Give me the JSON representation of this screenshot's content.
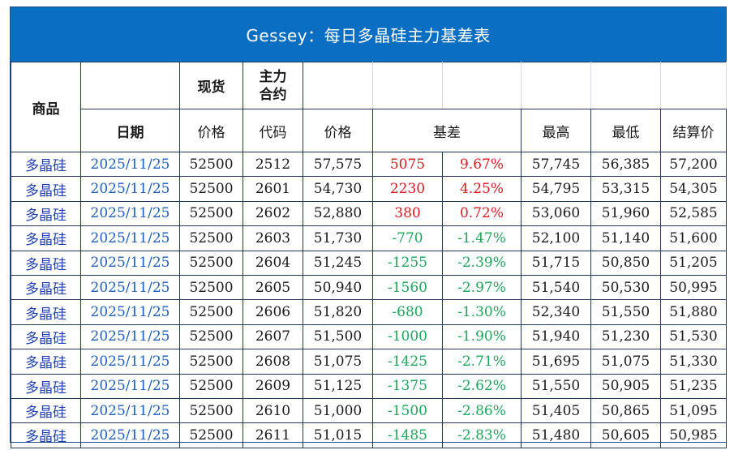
{
  "title": "Gessey：每日多晶硅主力基差表",
  "headers": {
    "product": "商品",
    "spot": "现货",
    "contract": "主力合约",
    "date": "日期",
    "spot_price": "价格",
    "code": "代码",
    "price": "价格",
    "basis": "基差",
    "high": "最高",
    "low": "最低",
    "settle": "结算价"
  },
  "rows": [
    {
      "product": "多晶硅",
      "date": "2025/11/25",
      "spot": "52500",
      "code": "2512",
      "price": "57,575",
      "basis": "5075",
      "basis_pct": "9.67%",
      "high": "57,745",
      "low": "56,385",
      "settle": "57,200",
      "dir": "up"
    },
    {
      "product": "多晶硅",
      "date": "2025/11/25",
      "spot": "52500",
      "code": "2601",
      "price": "54,730",
      "basis": "2230",
      "basis_pct": "4.25%",
      "high": "54,795",
      "low": "53,315",
      "settle": "54,305",
      "dir": "up"
    },
    {
      "product": "多晶硅",
      "date": "2025/11/25",
      "spot": "52500",
      "code": "2602",
      "price": "52,880",
      "basis": "380",
      "basis_pct": "0.72%",
      "high": "53,060",
      "low": "51,960",
      "settle": "52,585",
      "dir": "up"
    },
    {
      "product": "多晶硅",
      "date": "2025/11/25",
      "spot": "52500",
      "code": "2603",
      "price": "51,730",
      "basis": "-770",
      "basis_pct": "-1.47%",
      "high": "52,100",
      "low": "51,140",
      "settle": "51,600",
      "dir": "down"
    },
    {
      "product": "多晶硅",
      "date": "2025/11/25",
      "spot": "52500",
      "code": "2604",
      "price": "51,245",
      "basis": "-1255",
      "basis_pct": "-2.39%",
      "high": "51,715",
      "low": "50,850",
      "settle": "51,205",
      "dir": "down"
    },
    {
      "product": "多晶硅",
      "date": "2025/11/25",
      "spot": "52500",
      "code": "2605",
      "price": "50,940",
      "basis": "-1560",
      "basis_pct": "-2.97%",
      "high": "51,540",
      "low": "50,530",
      "settle": "50,995",
      "dir": "down"
    },
    {
      "product": "多晶硅",
      "date": "2025/11/25",
      "spot": "52500",
      "code": "2606",
      "price": "51,820",
      "basis": "-680",
      "basis_pct": "-1.30%",
      "high": "52,340",
      "low": "51,550",
      "settle": "51,880",
      "dir": "down"
    },
    {
      "product": "多晶硅",
      "date": "2025/11/25",
      "spot": "52500",
      "code": "2607",
      "price": "51,500",
      "basis": "-1000",
      "basis_pct": "-1.90%",
      "high": "51,940",
      "low": "51,230",
      "settle": "51,530",
      "dir": "down"
    },
    {
      "product": "多晶硅",
      "date": "2025/11/25",
      "spot": "52500",
      "code": "2608",
      "price": "51,075",
      "basis": "-1425",
      "basis_pct": "-2.71%",
      "high": "51,695",
      "low": "51,075",
      "settle": "51,330",
      "dir": "down"
    },
    {
      "product": "多晶硅",
      "date": "2025/11/25",
      "spot": "52500",
      "code": "2609",
      "price": "51,125",
      "basis": "-1375",
      "basis_pct": "-2.62%",
      "high": "51,550",
      "low": "50,905",
      "settle": "51,235",
      "dir": "down"
    },
    {
      "product": "多晶硅",
      "date": "2025/11/25",
      "spot": "52500",
      "code": "2610",
      "price": "51,000",
      "basis": "-1500",
      "basis_pct": "-2.86%",
      "high": "51,405",
      "low": "50,865",
      "settle": "51,095",
      "dir": "down"
    },
    {
      "product": "多晶硅",
      "date": "2025/11/25",
      "spot": "52500",
      "code": "2611",
      "price": "51,015",
      "basis": "-1485",
      "basis_pct": "-2.83%",
      "high": "51,480",
      "low": "50,605",
      "settle": "50,985",
      "dir": "down"
    }
  ],
  "colors": {
    "title_bg": "#0a6fc2",
    "positive": "#e0191e",
    "negative": "#1aa85a",
    "product_text": "#1f3fb0",
    "date_text": "#1f5fbf"
  }
}
